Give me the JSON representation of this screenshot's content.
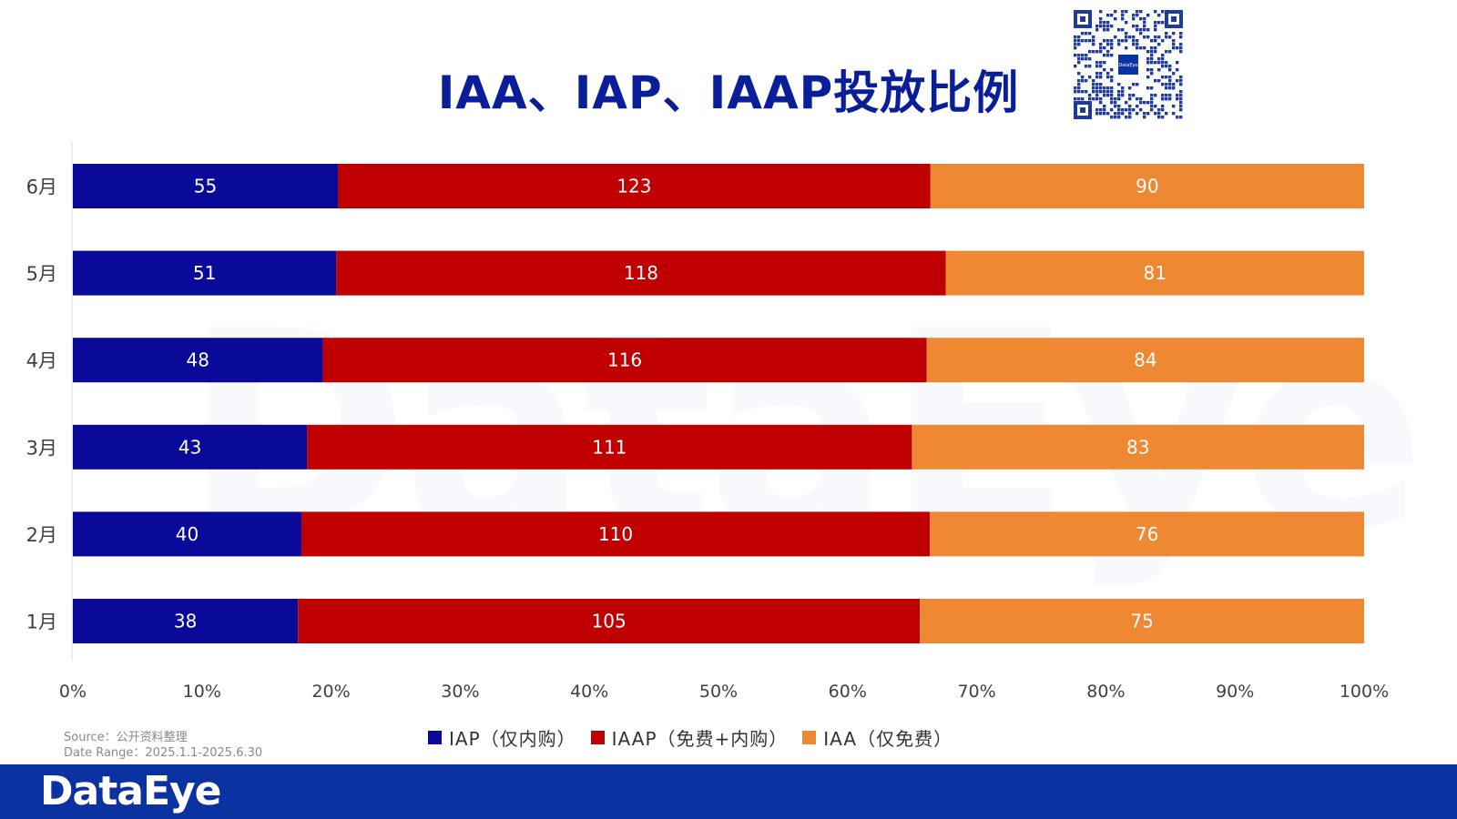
{
  "title": "IAA、IAP、IAAP投放比例",
  "source_line": "Source：公开资料整理",
  "date_line": "Date Range：2025.1.1-2025.6.30",
  "footer_logo": "DataEye",
  "qr_logo_text": "DataEye",
  "watermark": "DataEye",
  "colors": {
    "IAP": "#0A0A9A",
    "IAAP": "#C00000",
    "IAA": "#EE8833",
    "title": "#0A1E9A",
    "footer": "#0A32A0"
  },
  "legend": [
    {
      "key": "IAP",
      "label": "IAP（仅内购）"
    },
    {
      "key": "IAAP",
      "label": "IAAP（免费+内购）"
    },
    {
      "key": "IAA",
      "label": "IAA（仅免费）"
    }
  ],
  "chart_data": {
    "type": "bar",
    "orientation": "horizontal",
    "stacking": "percent",
    "categories": [
      "6月",
      "5月",
      "4月",
      "3月",
      "2月",
      "1月"
    ],
    "series": [
      {
        "name": "IAP（仅内购）",
        "key": "IAP",
        "values": [
          55,
          51,
          48,
          43,
          40,
          38
        ]
      },
      {
        "name": "IAAP（免费+内购）",
        "key": "IAAP",
        "values": [
          123,
          118,
          116,
          111,
          110,
          105
        ]
      },
      {
        "name": "IAA（仅免费）",
        "key": "IAA",
        "values": [
          90,
          81,
          84,
          83,
          76,
          75
        ]
      }
    ],
    "xticks": [
      "0%",
      "10%",
      "20%",
      "30%",
      "40%",
      "50%",
      "60%",
      "70%",
      "80%",
      "90%",
      "100%"
    ],
    "xlim": [
      0,
      100
    ],
    "grid": false,
    "legend_position": "bottom"
  }
}
